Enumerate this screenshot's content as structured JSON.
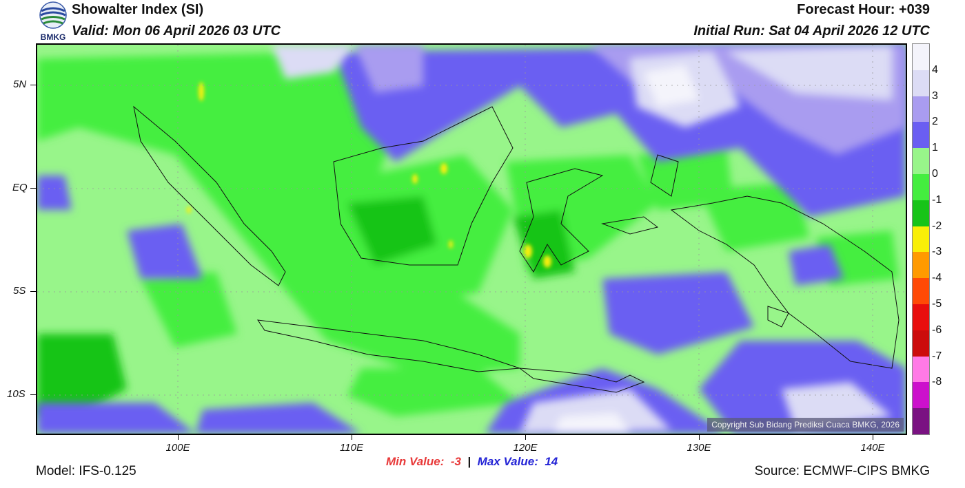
{
  "header": {
    "title": "Showalter Index (SI)",
    "valid": "Valid: Mon 06 April 2026 03 UTC",
    "forecast_hour": "Forecast Hour: +039",
    "initial_run": "Initial Run: Sat 04 April 2026 12 UTC",
    "logo_text": "BMKG"
  },
  "axes": {
    "lat_labels": [
      "5N",
      "EQ",
      "5S",
      "10S"
    ],
    "lon_labels": [
      "100E",
      "110E",
      "120E",
      "130E",
      "140E"
    ]
  },
  "legend": {
    "levels": [
      {
        "label": "",
        "color": "#f4f4fb"
      },
      {
        "label": "4",
        "color": "#dcdcf5"
      },
      {
        "label": "3",
        "color": "#a99cf0"
      },
      {
        "label": "2",
        "color": "#6a5ef2"
      },
      {
        "label": "1",
        "color": "#98f58a"
      },
      {
        "label": "0",
        "color": "#44ee3f"
      },
      {
        "label": "-1",
        "color": "#17c418"
      },
      {
        "label": "-2",
        "color": "#f9ef07"
      },
      {
        "label": "-3",
        "color": "#ff9a00"
      },
      {
        "label": "-4",
        "color": "#ff4a06"
      },
      {
        "label": "-5",
        "color": "#e80e0d"
      },
      {
        "label": "-6",
        "color": "#cc0c0c"
      },
      {
        "label": "-7",
        "color": "#ff7ae6"
      },
      {
        "label": "-8",
        "color": "#cc10cc"
      },
      {
        "label": "",
        "color": "#7a1282"
      }
    ]
  },
  "stats": {
    "min_label": "Min Value:",
    "min_value": "-3",
    "separator": "|",
    "max_label": "Max Value:",
    "max_value": "14",
    "min_color": "#e83a3a",
    "max_color": "#2424d6"
  },
  "footer": {
    "model": "Model: IFS-0.125",
    "source": "Source: ECMWF-CIPS BMKG",
    "copyright": "Copyright Sub Bidang Prediksi Cuaca BMKG, 2026"
  }
}
